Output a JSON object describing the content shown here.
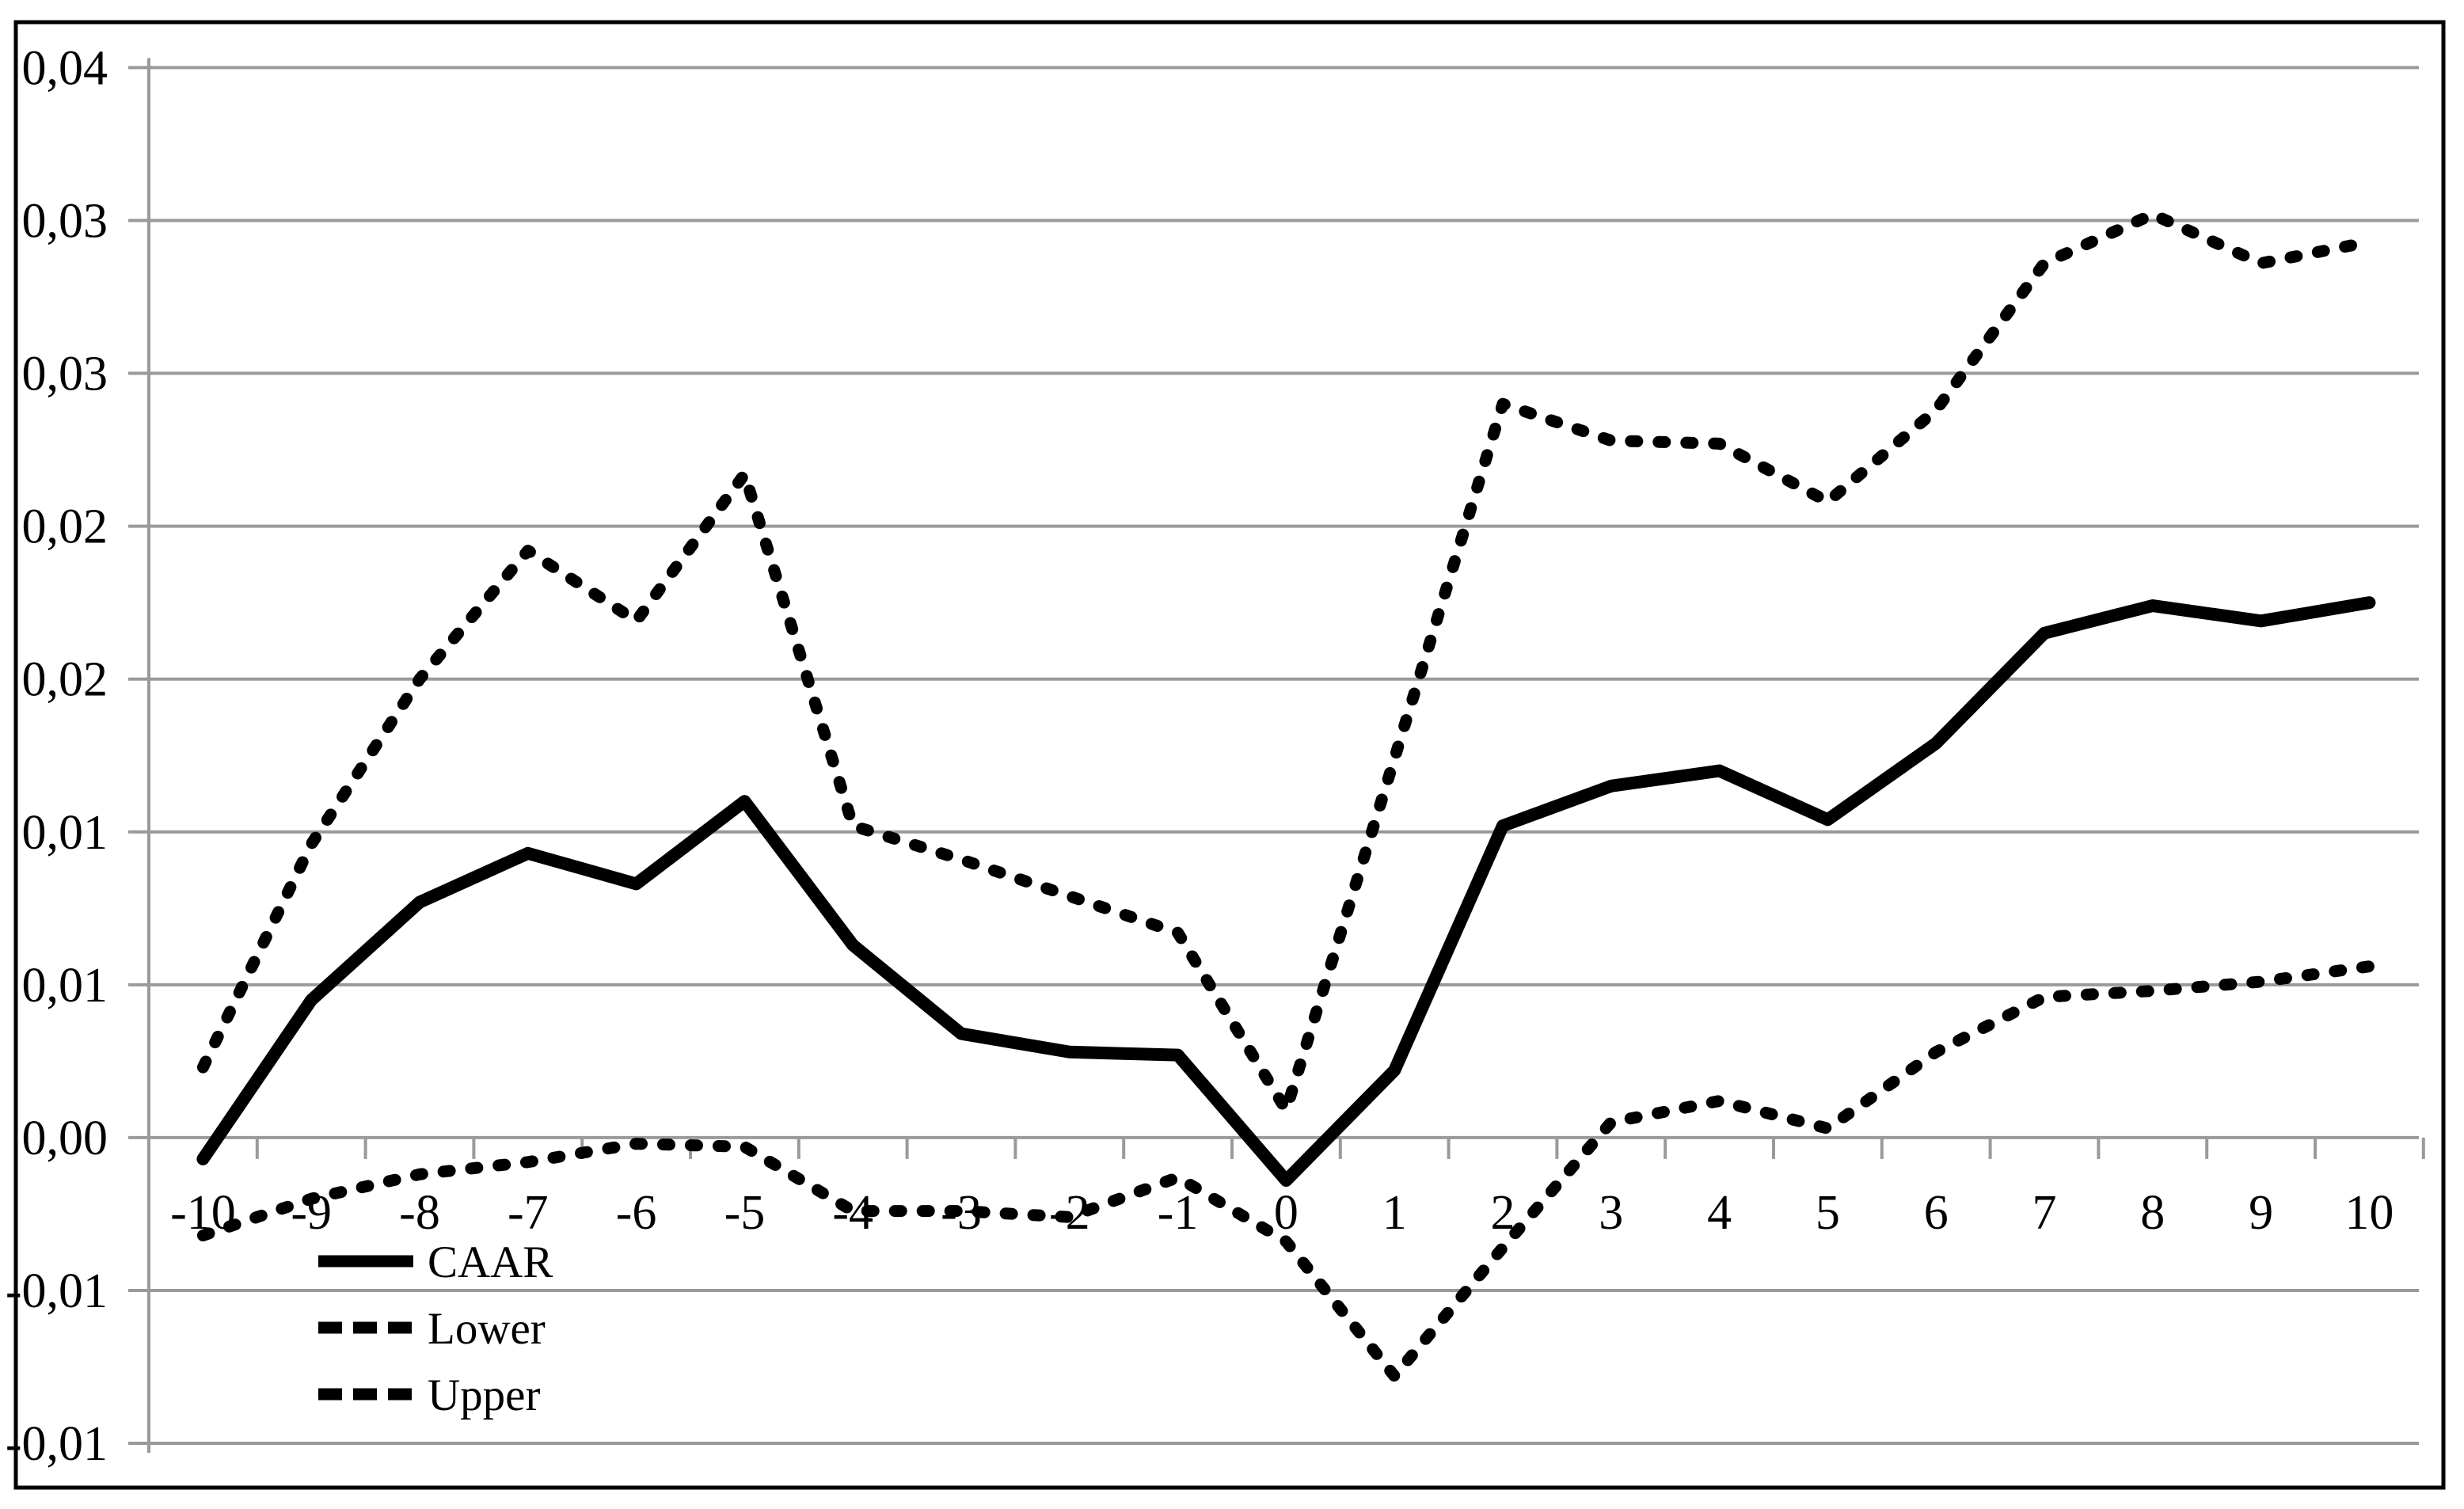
{
  "chart_data": {
    "type": "line",
    "title": "",
    "xlabel": "",
    "ylabel": "",
    "x": [
      -10,
      -9,
      -8,
      -7,
      -6,
      -5,
      -4,
      -3,
      -2,
      -1,
      0,
      1,
      2,
      3,
      4,
      5,
      6,
      7,
      8,
      9,
      10
    ],
    "x_tick_labels": [
      "-10",
      "-9",
      "-8",
      "-7",
      "-6",
      "-5",
      "-4",
      "-3",
      "-2",
      "-1",
      "0",
      "1",
      "2",
      "3",
      "4",
      "5",
      "6",
      "7",
      "8",
      "9",
      "10"
    ],
    "series": [
      {
        "name": "CAAR",
        "style": "solid",
        "values": [
          -0.0007,
          0.0045,
          0.0077,
          0.0093,
          0.0083,
          0.011,
          0.0063,
          0.0034,
          0.0028,
          0.0027,
          -0.0014,
          0.0022,
          0.0102,
          0.0115,
          0.012,
          0.0104,
          0.0129,
          0.0165,
          0.0174,
          0.0169,
          0.0175
        ]
      },
      {
        "name": "Lower",
        "style": "dashed",
        "values": [
          -0.0032,
          -0.002,
          -0.0012,
          -0.0008,
          -0.0002,
          -0.0003,
          -0.0024,
          -0.0024,
          -0.0026,
          -0.0013,
          -0.0034,
          -0.0078,
          -0.0036,
          0.0005,
          0.0012,
          0.0003,
          0.0028,
          0.0046,
          0.0048,
          0.0051,
          0.0056
        ]
      },
      {
        "name": "Upper",
        "style": "dashed",
        "values": [
          0.0023,
          0.0096,
          0.015,
          0.0192,
          0.0169,
          0.0217,
          0.0102,
          0.0091,
          0.0079,
          0.0067,
          0.0009,
          0.0124,
          0.024,
          0.0228,
          0.0227,
          0.0208,
          0.0238,
          0.0286,
          0.0302,
          0.0286,
          0.0293
        ]
      }
    ],
    "y_ticks": [
      {
        "value": 0.035,
        "label": "0,04"
      },
      {
        "value": 0.03,
        "label": "0,03"
      },
      {
        "value": 0.025,
        "label": "0,03"
      },
      {
        "value": 0.02,
        "label": "0,02"
      },
      {
        "value": 0.015,
        "label": "0,02"
      },
      {
        "value": 0.01,
        "label": "0,01"
      },
      {
        "value": 0.005,
        "label": "0,01"
      },
      {
        "value": 0.0,
        "label": "0,00"
      },
      {
        "value": -0.005,
        "label": "-0,01"
      },
      {
        "value": -0.01,
        "label": "-0,01"
      }
    ],
    "ylim": [
      -0.0125,
      0.0375
    ],
    "grid": true,
    "legend_position": "inside-bottom-left",
    "legend": [
      {
        "label": "CAAR",
        "style": "solid"
      },
      {
        "label": "Lower",
        "style": "dashed"
      },
      {
        "label": "Upper",
        "style": "dashed"
      }
    ]
  },
  "colors": {
    "line": "#000000",
    "grid": "#9a9a9a",
    "axis": "#9a9a9a",
    "frame": "#000000",
    "background": "#ffffff"
  }
}
